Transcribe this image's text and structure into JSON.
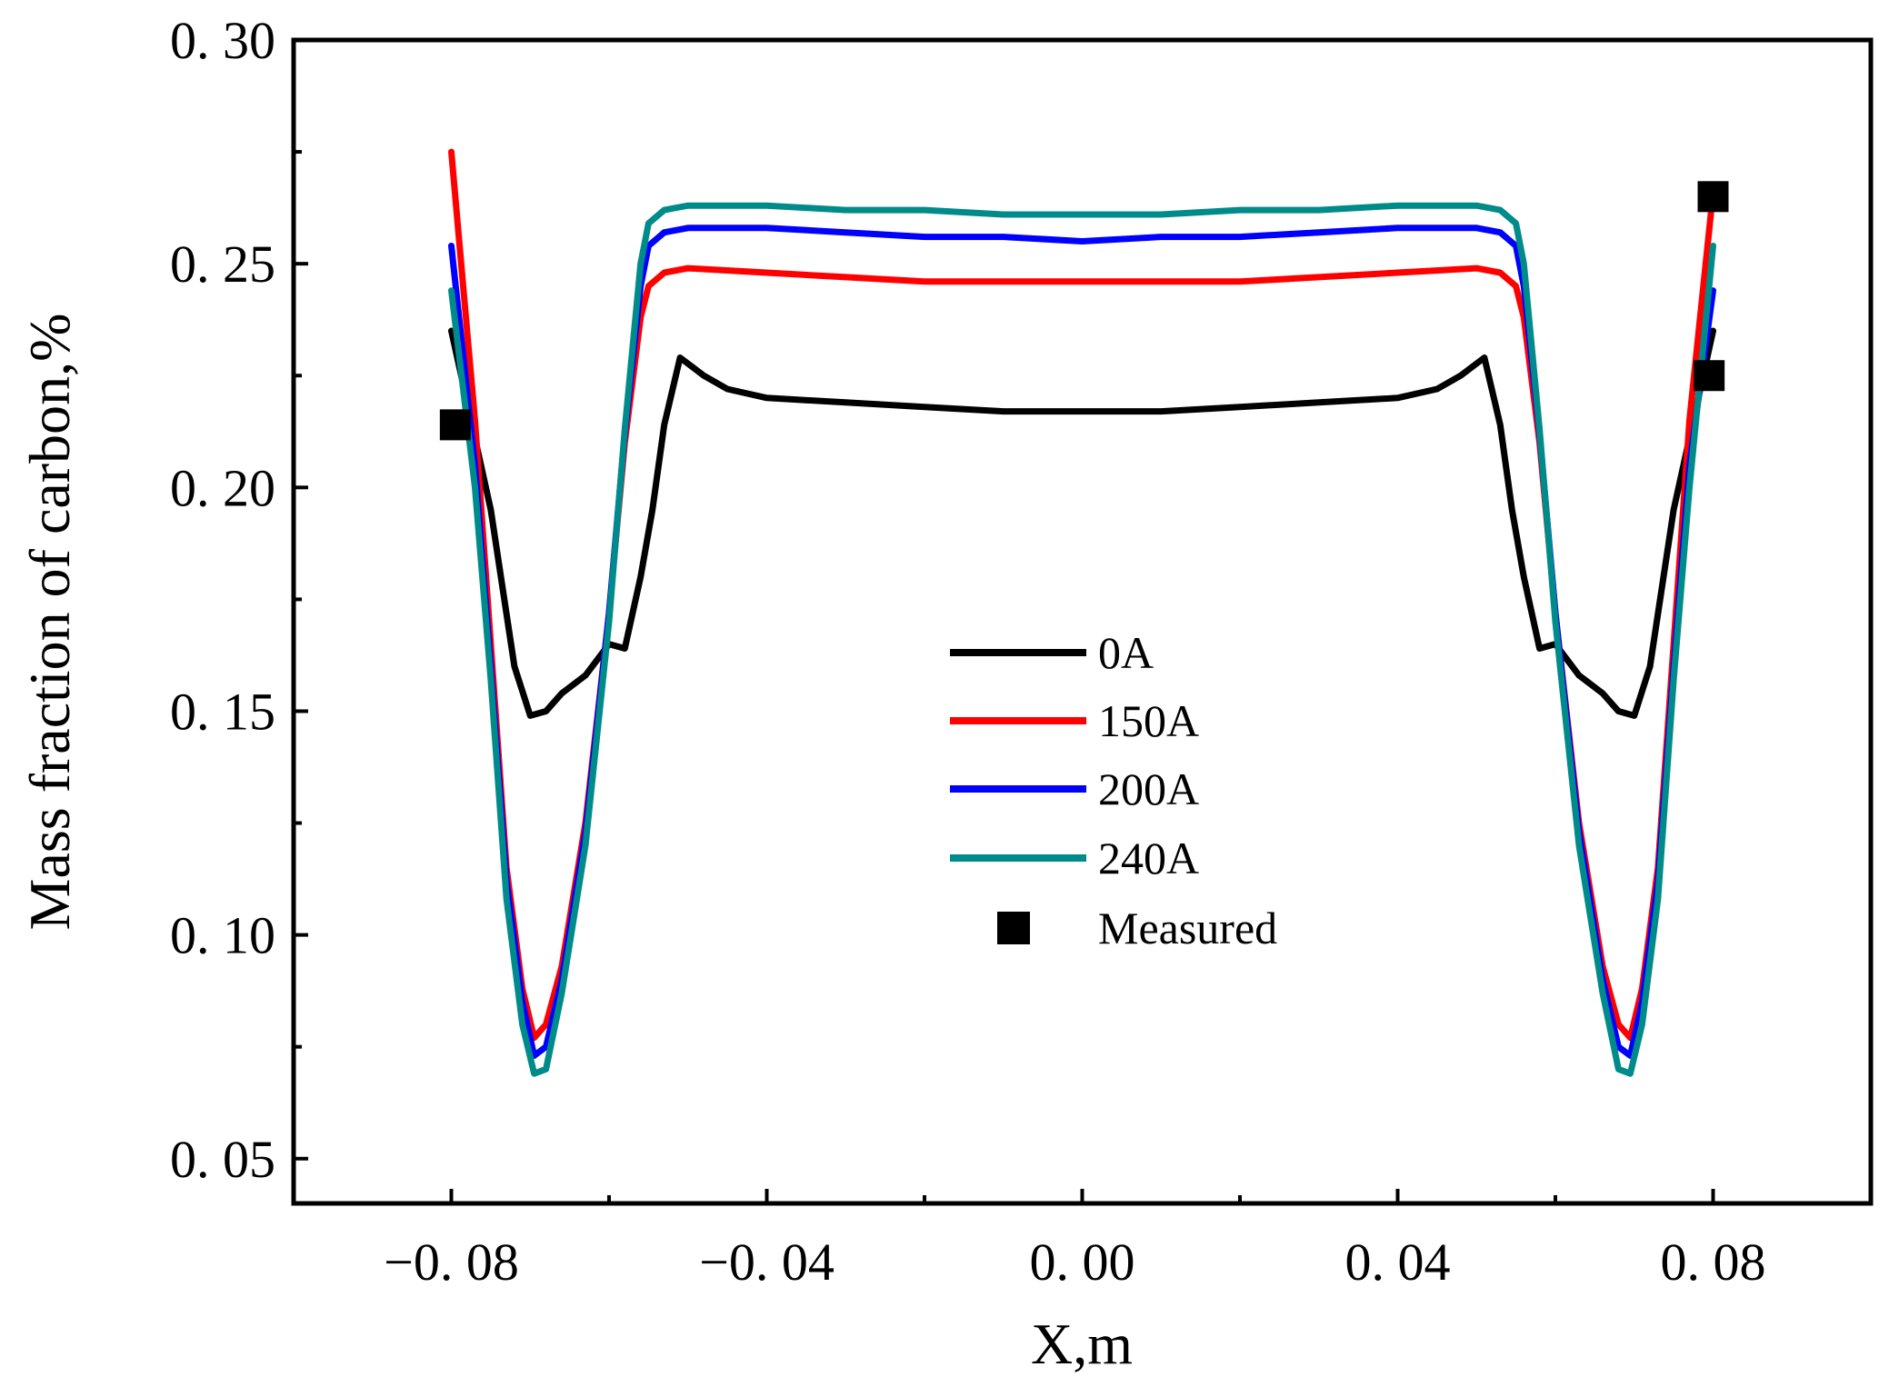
{
  "chart_data": {
    "type": "line",
    "title": "",
    "xlabel": "X,m",
    "ylabel": "Mass fraction of carbon,%",
    "xlim": [
      -0.1,
      0.1
    ],
    "ylim": [
      0.04,
      0.3
    ],
    "grid": false,
    "legend_position": "center",
    "x_ticks": [
      -0.08,
      -0.04,
      0.0,
      0.04,
      0.08
    ],
    "x_tick_labels": [
      "−0. 08",
      "−0. 04",
      "0. 00",
      "0. 04",
      "0. 08"
    ],
    "y_ticks": [
      0.05,
      0.1,
      0.15,
      0.2,
      0.25,
      0.3
    ],
    "y_tick_labels": [
      "0. 05",
      "0. 10",
      "0. 15",
      "0. 20",
      "0. 25",
      "0. 30"
    ],
    "series": [
      {
        "name": "0A",
        "color": "#000000",
        "x": [
          -0.08,
          -0.075,
          -0.072,
          -0.07,
          -0.068,
          -0.066,
          -0.063,
          -0.06,
          -0.058,
          -0.056,
          -0.0545,
          -0.053,
          -0.051,
          -0.048,
          -0.045,
          -0.04,
          -0.03,
          -0.02,
          -0.01,
          0.0,
          0.01,
          0.02,
          0.03,
          0.04,
          0.045,
          0.048,
          0.051,
          0.053,
          0.0545,
          0.056,
          0.058,
          0.06,
          0.063,
          0.066,
          0.068,
          0.07,
          0.072,
          0.075,
          0.08
        ],
        "values": [
          0.235,
          0.195,
          0.16,
          0.149,
          0.15,
          0.154,
          0.158,
          0.165,
          0.164,
          0.18,
          0.195,
          0.214,
          0.229,
          0.225,
          0.222,
          0.22,
          0.219,
          0.218,
          0.217,
          0.217,
          0.217,
          0.218,
          0.219,
          0.22,
          0.222,
          0.225,
          0.229,
          0.214,
          0.195,
          0.18,
          0.164,
          0.165,
          0.158,
          0.154,
          0.15,
          0.149,
          0.16,
          0.195,
          0.235
        ]
      },
      {
        "name": "150A",
        "color": "#ff0000",
        "x": [
          -0.08,
          -0.077,
          -0.075,
          -0.073,
          -0.071,
          -0.0695,
          -0.068,
          -0.066,
          -0.063,
          -0.06,
          -0.058,
          -0.056,
          -0.055,
          -0.053,
          -0.05,
          -0.04,
          -0.03,
          -0.02,
          -0.01,
          0.0,
          0.01,
          0.02,
          0.03,
          0.04,
          0.05,
          0.053,
          0.055,
          0.056,
          0.058,
          0.06,
          0.063,
          0.066,
          0.068,
          0.0695,
          0.071,
          0.073,
          0.075,
          0.077,
          0.08
        ],
        "values": [
          0.275,
          0.215,
          0.165,
          0.115,
          0.088,
          0.077,
          0.08,
          0.093,
          0.125,
          0.172,
          0.21,
          0.238,
          0.245,
          0.248,
          0.249,
          0.248,
          0.247,
          0.246,
          0.246,
          0.246,
          0.246,
          0.246,
          0.247,
          0.248,
          0.249,
          0.248,
          0.245,
          0.238,
          0.21,
          0.172,
          0.125,
          0.093,
          0.08,
          0.077,
          0.088,
          0.115,
          0.165,
          0.215,
          0.266
        ]
      },
      {
        "name": "200A",
        "color": "#0000ff",
        "x": [
          -0.08,
          -0.077,
          -0.075,
          -0.073,
          -0.071,
          -0.0695,
          -0.068,
          -0.066,
          -0.063,
          -0.06,
          -0.058,
          -0.056,
          -0.055,
          -0.053,
          -0.05,
          -0.04,
          -0.03,
          -0.02,
          -0.01,
          0.0,
          0.01,
          0.02,
          0.03,
          0.04,
          0.05,
          0.053,
          0.055,
          0.056,
          0.058,
          0.06,
          0.063,
          0.066,
          0.068,
          0.0695,
          0.071,
          0.073,
          0.075,
          0.077,
          0.08
        ],
        "values": [
          0.254,
          0.205,
          0.16,
          0.112,
          0.085,
          0.073,
          0.075,
          0.09,
          0.123,
          0.172,
          0.212,
          0.245,
          0.254,
          0.257,
          0.258,
          0.258,
          0.257,
          0.256,
          0.256,
          0.255,
          0.256,
          0.256,
          0.257,
          0.258,
          0.258,
          0.257,
          0.254,
          0.245,
          0.212,
          0.172,
          0.123,
          0.09,
          0.075,
          0.073,
          0.085,
          0.112,
          0.16,
          0.205,
          0.244
        ]
      },
      {
        "name": "240A",
        "color": "#008b8b",
        "x": [
          -0.08,
          -0.077,
          -0.075,
          -0.073,
          -0.071,
          -0.0695,
          -0.068,
          -0.066,
          -0.063,
          -0.06,
          -0.058,
          -0.056,
          -0.055,
          -0.053,
          -0.05,
          -0.04,
          -0.03,
          -0.02,
          -0.01,
          0.0,
          0.01,
          0.02,
          0.03,
          0.04,
          0.05,
          0.053,
          0.055,
          0.056,
          0.058,
          0.06,
          0.063,
          0.066,
          0.068,
          0.0695,
          0.071,
          0.073,
          0.075,
          0.077,
          0.08
        ],
        "values": [
          0.244,
          0.2,
          0.157,
          0.108,
          0.08,
          0.069,
          0.07,
          0.087,
          0.12,
          0.17,
          0.213,
          0.25,
          0.259,
          0.262,
          0.263,
          0.263,
          0.262,
          0.262,
          0.261,
          0.261,
          0.261,
          0.262,
          0.262,
          0.263,
          0.263,
          0.262,
          0.259,
          0.25,
          0.213,
          0.17,
          0.12,
          0.087,
          0.07,
          0.069,
          0.08,
          0.108,
          0.157,
          0.2,
          0.254
        ]
      }
    ],
    "measured": {
      "name": "Measured",
      "color": "#000000",
      "points": [
        {
          "x": -0.0795,
          "y": 0.214
        },
        {
          "x": 0.0795,
          "y": 0.225
        },
        {
          "x": 0.08,
          "y": 0.265
        }
      ]
    }
  }
}
